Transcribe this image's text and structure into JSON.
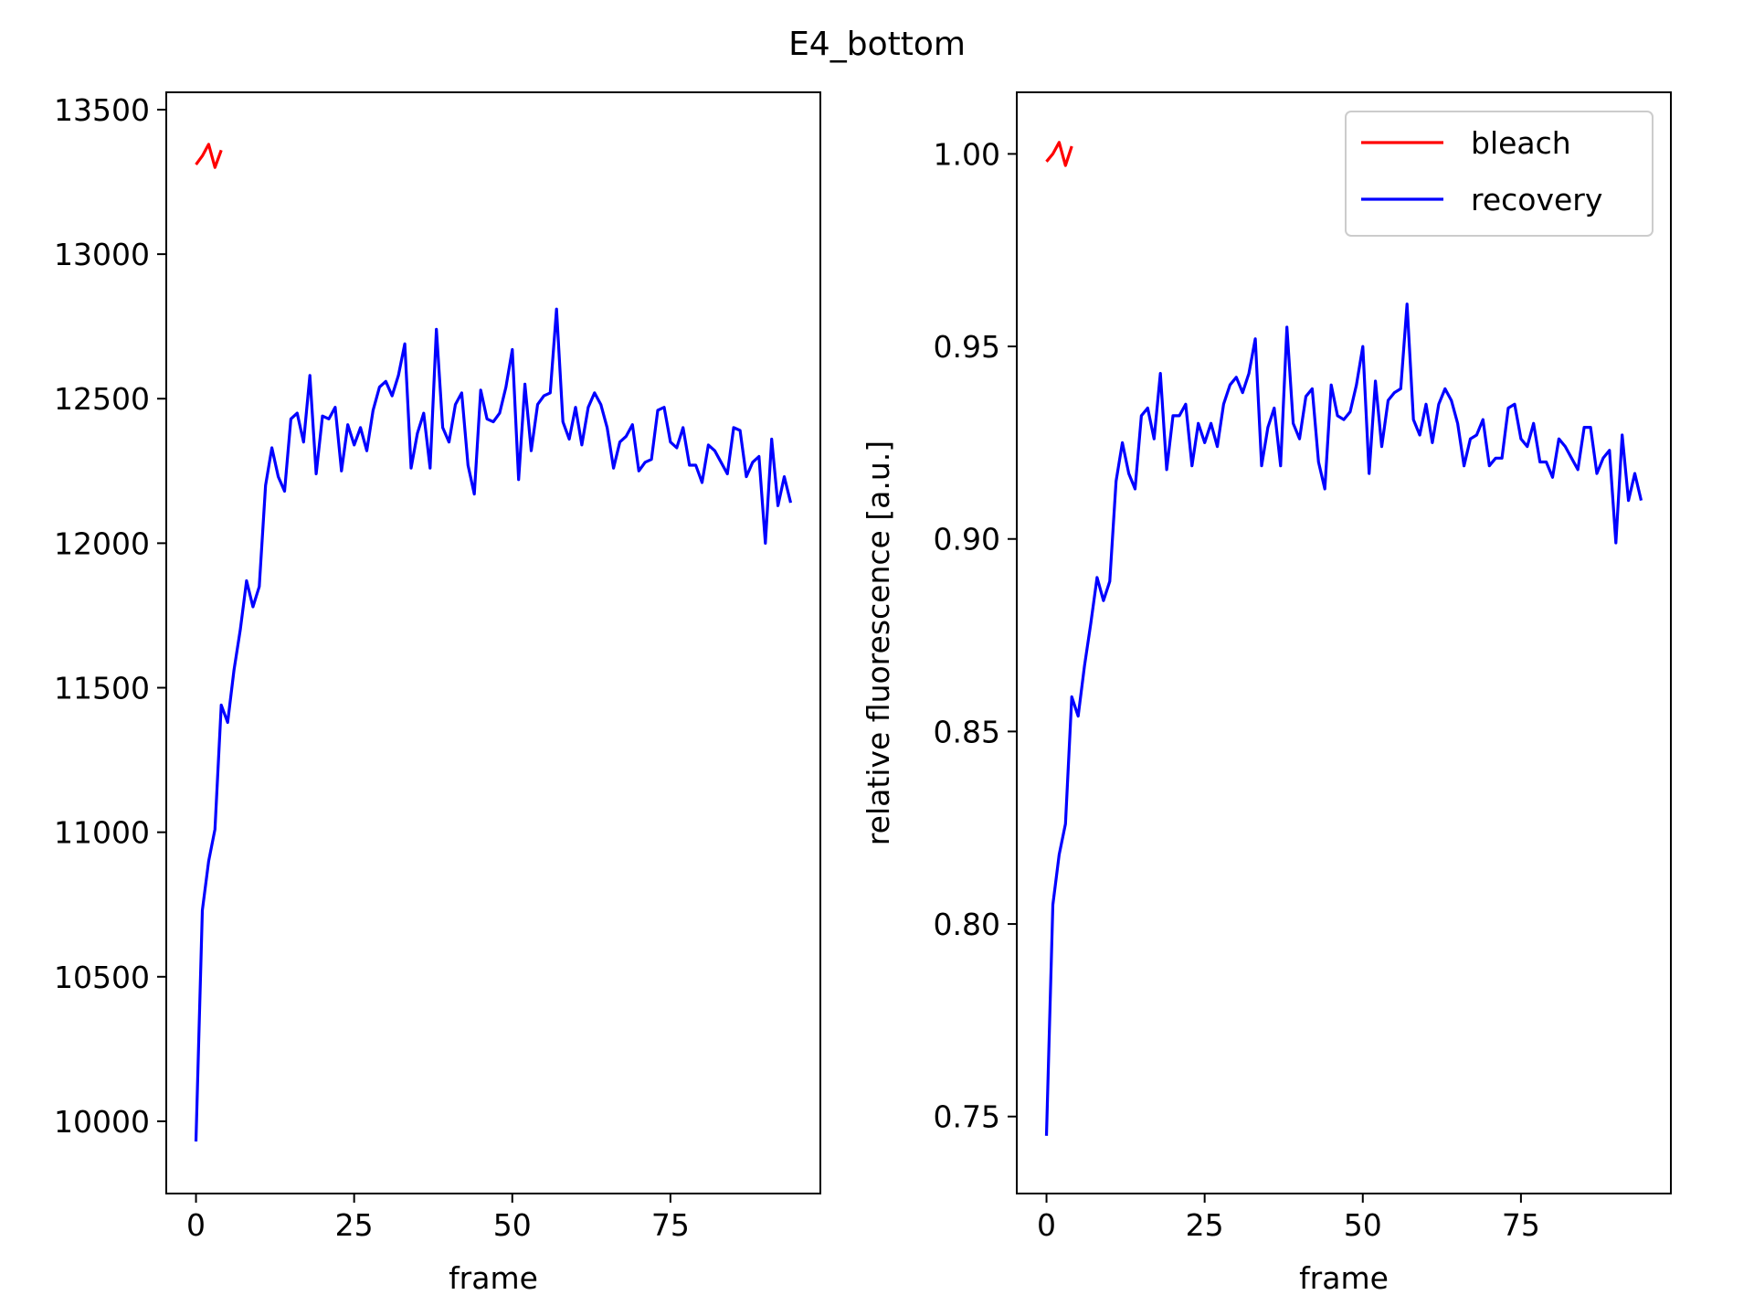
{
  "figure": {
    "title": "E4_bottom"
  },
  "chart_data": [
    {
      "type": "line",
      "title": "",
      "xlabel": "frame",
      "ylabel": "",
      "xlim": [
        -4.7,
        98.7
      ],
      "ylim": [
        9750,
        13560
      ],
      "xticks": [
        0,
        25,
        50,
        75
      ],
      "yticks": [
        10000,
        10500,
        11000,
        11500,
        12000,
        12500,
        13000,
        13500
      ],
      "ytick_labels": [
        "10000",
        "10500",
        "11000",
        "11500",
        "12000",
        "12500",
        "13000",
        "13500"
      ],
      "grid": false,
      "legend": null,
      "series": [
        {
          "name": "bleach",
          "color": "#ff0000",
          "x": [
            0,
            1,
            2,
            3,
            4
          ],
          "y": [
            13310,
            13340,
            13380,
            13300,
            13360
          ]
        },
        {
          "name": "recovery",
          "color": "#0000ff",
          "x": [
            0,
            1,
            2,
            3,
            4,
            5,
            6,
            7,
            8,
            9,
            10,
            11,
            12,
            13,
            14,
            15,
            16,
            17,
            18,
            19,
            20,
            21,
            22,
            23,
            24,
            25,
            26,
            27,
            28,
            29,
            30,
            31,
            32,
            33,
            34,
            35,
            36,
            37,
            38,
            39,
            40,
            41,
            42,
            43,
            44,
            45,
            46,
            47,
            48,
            49,
            50,
            51,
            52,
            53,
            54,
            55,
            56,
            57,
            58,
            59,
            60,
            61,
            62,
            63,
            64,
            65,
            66,
            67,
            68,
            69,
            70,
            71,
            72,
            73,
            74,
            75,
            76,
            77,
            78,
            79,
            80,
            81,
            82,
            83,
            84,
            85,
            86,
            87,
            88,
            89,
            90,
            91,
            92,
            93,
            94
          ],
          "y": [
            9930,
            10730,
            10900,
            11010,
            11440,
            11380,
            11560,
            11700,
            11870,
            11780,
            11850,
            12200,
            12330,
            12230,
            12180,
            12430,
            12450,
            12350,
            12580,
            12240,
            12440,
            12430,
            12470,
            12250,
            12410,
            12340,
            12400,
            12320,
            12460,
            12540,
            12560,
            12510,
            12580,
            12690,
            12260,
            12380,
            12450,
            12260,
            12740,
            12400,
            12350,
            12480,
            12520,
            12270,
            12170,
            12530,
            12430,
            12420,
            12450,
            12540,
            12670,
            12220,
            12550,
            12320,
            12480,
            12510,
            12520,
            12810,
            12420,
            12360,
            12470,
            12340,
            12470,
            12520,
            12480,
            12400,
            12260,
            12350,
            12370,
            12410,
            12250,
            12280,
            12290,
            12460,
            12470,
            12350,
            12330,
            12400,
            12270,
            12270,
            12210,
            12340,
            12320,
            12280,
            12240,
            12400,
            12390,
            12230,
            12280,
            12300,
            12000,
            12360,
            12130,
            12230,
            12140
          ]
        }
      ]
    },
    {
      "type": "line",
      "title": "",
      "xlabel": "frame",
      "ylabel": "relative fluorescence [a.u.]",
      "xlim": [
        -4.7,
        98.7
      ],
      "ylim": [
        0.73,
        1.016
      ],
      "xticks": [
        0,
        25,
        50,
        75
      ],
      "yticks": [
        0.75,
        0.8,
        0.85,
        0.9,
        0.95,
        1.0
      ],
      "ytick_labels": [
        "0.75",
        "0.80",
        "0.85",
        "0.90",
        "0.95",
        "1.00"
      ],
      "grid": false,
      "legend": "top-right",
      "series": [
        {
          "name": "bleach",
          "color": "#ff0000",
          "x": [
            0,
            1,
            2,
            3,
            4
          ],
          "y": [
            0.998,
            1.0,
            1.003,
            0.997,
            1.002
          ]
        },
        {
          "name": "recovery",
          "color": "#0000ff",
          "x": [
            0,
            1,
            2,
            3,
            4,
            5,
            6,
            7,
            8,
            9,
            10,
            11,
            12,
            13,
            14,
            15,
            16,
            17,
            18,
            19,
            20,
            21,
            22,
            23,
            24,
            25,
            26,
            27,
            28,
            29,
            30,
            31,
            32,
            33,
            34,
            35,
            36,
            37,
            38,
            39,
            40,
            41,
            42,
            43,
            44,
            45,
            46,
            47,
            48,
            49,
            50,
            51,
            52,
            53,
            54,
            55,
            56,
            57,
            58,
            59,
            60,
            61,
            62,
            63,
            64,
            65,
            66,
            67,
            68,
            69,
            70,
            71,
            72,
            73,
            74,
            75,
            76,
            77,
            78,
            79,
            80,
            81,
            82,
            83,
            84,
            85,
            86,
            87,
            88,
            89,
            90,
            91,
            92,
            93,
            94
          ],
          "y": [
            0.745,
            0.805,
            0.818,
            0.826,
            0.859,
            0.854,
            0.867,
            0.878,
            0.89,
            0.884,
            0.889,
            0.915,
            0.925,
            0.917,
            0.913,
            0.932,
            0.934,
            0.926,
            0.943,
            0.918,
            0.932,
            0.932,
            0.935,
            0.919,
            0.93,
            0.925,
            0.93,
            0.924,
            0.935,
            0.94,
            0.942,
            0.938,
            0.943,
            0.952,
            0.919,
            0.929,
            0.934,
            0.919,
            0.955,
            0.93,
            0.926,
            0.937,
            0.939,
            0.92,
            0.913,
            0.94,
            0.932,
            0.931,
            0.933,
            0.94,
            0.95,
            0.917,
            0.941,
            0.924,
            0.936,
            0.938,
            0.939,
            0.961,
            0.931,
            0.927,
            0.935,
            0.925,
            0.935,
            0.939,
            0.936,
            0.93,
            0.919,
            0.926,
            0.927,
            0.931,
            0.919,
            0.921,
            0.921,
            0.934,
            0.935,
            0.926,
            0.924,
            0.93,
            0.92,
            0.92,
            0.916,
            0.926,
            0.924,
            0.921,
            0.918,
            0.929,
            0.929,
            0.917,
            0.921,
            0.923,
            0.899,
            0.927,
            0.91,
            0.917,
            0.91
          ]
        }
      ]
    }
  ]
}
